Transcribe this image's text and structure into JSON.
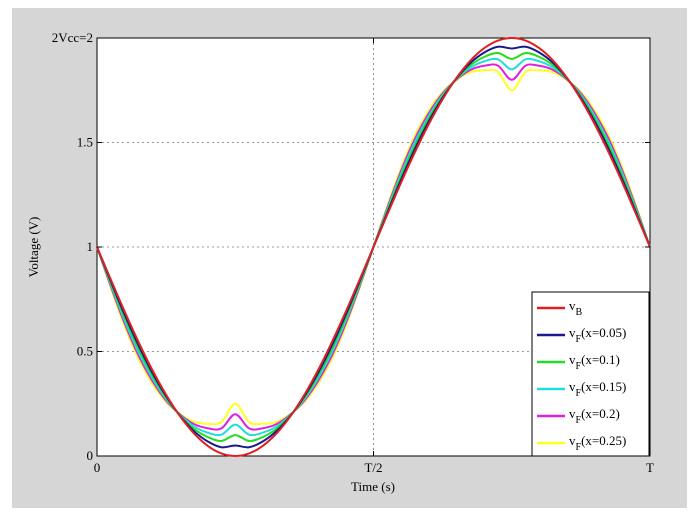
{
  "chart_data": {
    "type": "line",
    "xlabel": "Time (s)",
    "ylabel": "Voltage (V)",
    "xlim": [
      0,
      1
    ],
    "ylim": [
      0,
      2
    ],
    "x_ticks": [
      {
        "value": 0,
        "label": "0"
      },
      {
        "value": 0.5,
        "label": "T/2"
      },
      {
        "value": 1,
        "label": "T"
      }
    ],
    "y_ticks": [
      {
        "value": 0,
        "label": "0"
      },
      {
        "value": 0.5,
        "label": "0.5"
      },
      {
        "value": 1,
        "label": "1"
      },
      {
        "value": 1.5,
        "label": "1.5"
      },
      {
        "value": 2,
        "label": "2Vcc=2"
      }
    ],
    "grid": true,
    "legend_position": "bottom-right",
    "x": [
      0,
      0.025,
      0.05,
      0.075,
      0.1,
      0.125,
      0.15,
      0.175,
      0.2,
      0.225,
      0.25,
      0.275,
      0.3,
      0.325,
      0.35,
      0.375,
      0.4,
      0.425,
      0.45,
      0.475,
      0.5,
      0.525,
      0.55,
      0.575,
      0.6,
      0.625,
      0.65,
      0.675,
      0.7,
      0.725,
      0.75,
      0.775,
      0.8,
      0.825,
      0.85,
      0.875,
      0.9,
      0.925,
      0.95,
      0.975,
      1
    ],
    "series": [
      {
        "name": "v",
        "sub": "B",
        "suffix": "",
        "color": "#e02020",
        "values": [
          1,
          0.844,
          0.691,
          0.546,
          0.412,
          0.293,
          0.191,
          0.109,
          0.049,
          0.012,
          0,
          0.012,
          0.049,
          0.109,
          0.191,
          0.293,
          0.412,
          0.546,
          0.691,
          0.844,
          1,
          1.156,
          1.309,
          1.454,
          1.588,
          1.707,
          1.809,
          1.891,
          1.951,
          1.988,
          2,
          1.988,
          1.951,
          1.891,
          1.809,
          1.707,
          1.588,
          1.454,
          1.309,
          1.156,
          1
        ]
      },
      {
        "name": "v",
        "sub": "F",
        "suffix": "(x=0.05)",
        "color": "#1a1a8c",
        "values": [
          1,
          0.836,
          0.677,
          0.53,
          0.399,
          0.286,
          0.193,
          0.12,
          0.07,
          0.042,
          0.05,
          0.042,
          0.07,
          0.12,
          0.193,
          0.286,
          0.399,
          0.53,
          0.677,
          0.836,
          1,
          1.164,
          1.323,
          1.47,
          1.601,
          1.714,
          1.807,
          1.88,
          1.93,
          1.958,
          1.95,
          1.958,
          1.93,
          1.88,
          1.807,
          1.714,
          1.601,
          1.47,
          1.323,
          1.164,
          1
        ]
      },
      {
        "name": "v",
        "sub": "F",
        "suffix": "(x=0.1)",
        "color": "#22dd22",
        "values": [
          1,
          0.828,
          0.663,
          0.514,
          0.386,
          0.279,
          0.195,
          0.131,
          0.091,
          0.072,
          0.1,
          0.072,
          0.091,
          0.131,
          0.195,
          0.279,
          0.386,
          0.514,
          0.663,
          0.828,
          1,
          1.172,
          1.337,
          1.486,
          1.614,
          1.721,
          1.805,
          1.869,
          1.909,
          1.928,
          1.9,
          1.928,
          1.909,
          1.869,
          1.805,
          1.721,
          1.614,
          1.486,
          1.337,
          1.172,
          1
        ]
      },
      {
        "name": "v",
        "sub": "F",
        "suffix": "(x=0.15)",
        "color": "#22dddd",
        "values": [
          1,
          0.82,
          0.649,
          0.498,
          0.373,
          0.272,
          0.197,
          0.142,
          0.112,
          0.102,
          0.15,
          0.102,
          0.112,
          0.142,
          0.197,
          0.272,
          0.373,
          0.498,
          0.649,
          0.82,
          1,
          1.18,
          1.351,
          1.502,
          1.627,
          1.728,
          1.803,
          1.858,
          1.888,
          1.898,
          1.85,
          1.898,
          1.888,
          1.858,
          1.803,
          1.728,
          1.627,
          1.502,
          1.351,
          1.18,
          1
        ]
      },
      {
        "name": "v",
        "sub": "F",
        "suffix": "(x=0.2)",
        "color": "#dd22dd",
        "values": [
          1,
          0.812,
          0.635,
          0.482,
          0.36,
          0.265,
          0.199,
          0.153,
          0.133,
          0.132,
          0.2,
          0.132,
          0.133,
          0.153,
          0.199,
          0.265,
          0.36,
          0.482,
          0.635,
          0.812,
          1,
          1.188,
          1.365,
          1.518,
          1.64,
          1.735,
          1.801,
          1.847,
          1.867,
          1.868,
          1.8,
          1.868,
          1.867,
          1.847,
          1.801,
          1.735,
          1.64,
          1.518,
          1.365,
          1.188,
          1
        ]
      },
      {
        "name": "v",
        "sub": "F",
        "suffix": "(x=0.25)",
        "color": "#ffff22",
        "values": [
          1,
          0.804,
          0.621,
          0.466,
          0.347,
          0.258,
          0.201,
          0.164,
          0.154,
          0.162,
          0.25,
          0.162,
          0.154,
          0.164,
          0.201,
          0.258,
          0.347,
          0.466,
          0.621,
          0.804,
          1,
          1.196,
          1.379,
          1.534,
          1.653,
          1.742,
          1.799,
          1.836,
          1.846,
          1.838,
          1.75,
          1.838,
          1.846,
          1.836,
          1.799,
          1.742,
          1.653,
          1.534,
          1.379,
          1.196,
          1
        ]
      }
    ]
  }
}
